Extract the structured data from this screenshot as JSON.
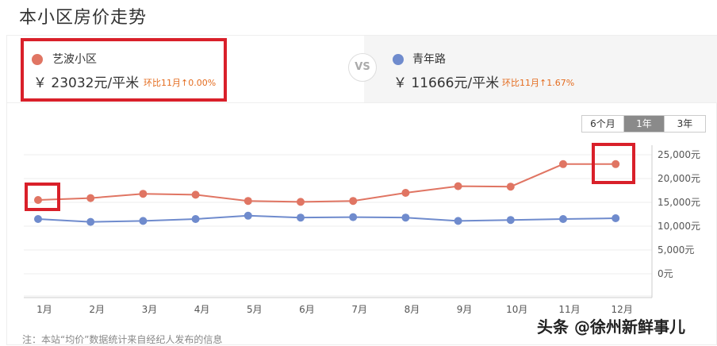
{
  "page": {
    "title": "本小区房价走势",
    "footnote": "注：本站“均价”数据统计来自经纪人发布的信息",
    "watermark": "头条 @徐州新鲜事儿"
  },
  "compare": {
    "left": {
      "name": "艺波小区",
      "price": "￥ 23032元/平米",
      "change": "环比11月↑0.00%",
      "color": "#e07563"
    },
    "vs": "VS",
    "right": {
      "name": "青年路",
      "price": "￥ 11666元/平米",
      "change": "环比11月↑1.67%",
      "color": "#6f8bcd"
    }
  },
  "range_tabs": [
    {
      "label": "6个月",
      "active": false
    },
    {
      "label": "1年",
      "active": true
    },
    {
      "label": "3年",
      "active": false
    }
  ],
  "chart_data": {
    "type": "line",
    "categories": [
      "1月",
      "2月",
      "3月",
      "4月",
      "5月",
      "6月",
      "7月",
      "8月",
      "9月",
      "10月",
      "11月",
      "12月"
    ],
    "series": [
      {
        "name": "艺波小区",
        "color": "#e07563",
        "values": [
          15500,
          15900,
          16800,
          16600,
          15300,
          15100,
          15300,
          17000,
          18400,
          18300,
          23032,
          23032
        ]
      },
      {
        "name": "青年路",
        "color": "#6f8bcd",
        "values": [
          11500,
          10900,
          11100,
          11500,
          12200,
          11800,
          11900,
          11800,
          11100,
          11300,
          11500,
          11666
        ]
      }
    ],
    "y_ticks": [
      "25,000元",
      "20,000元",
      "15,000元",
      "10,000元",
      "5,000元",
      "0元"
    ],
    "ylim": [
      0,
      25000
    ],
    "grid": true
  }
}
